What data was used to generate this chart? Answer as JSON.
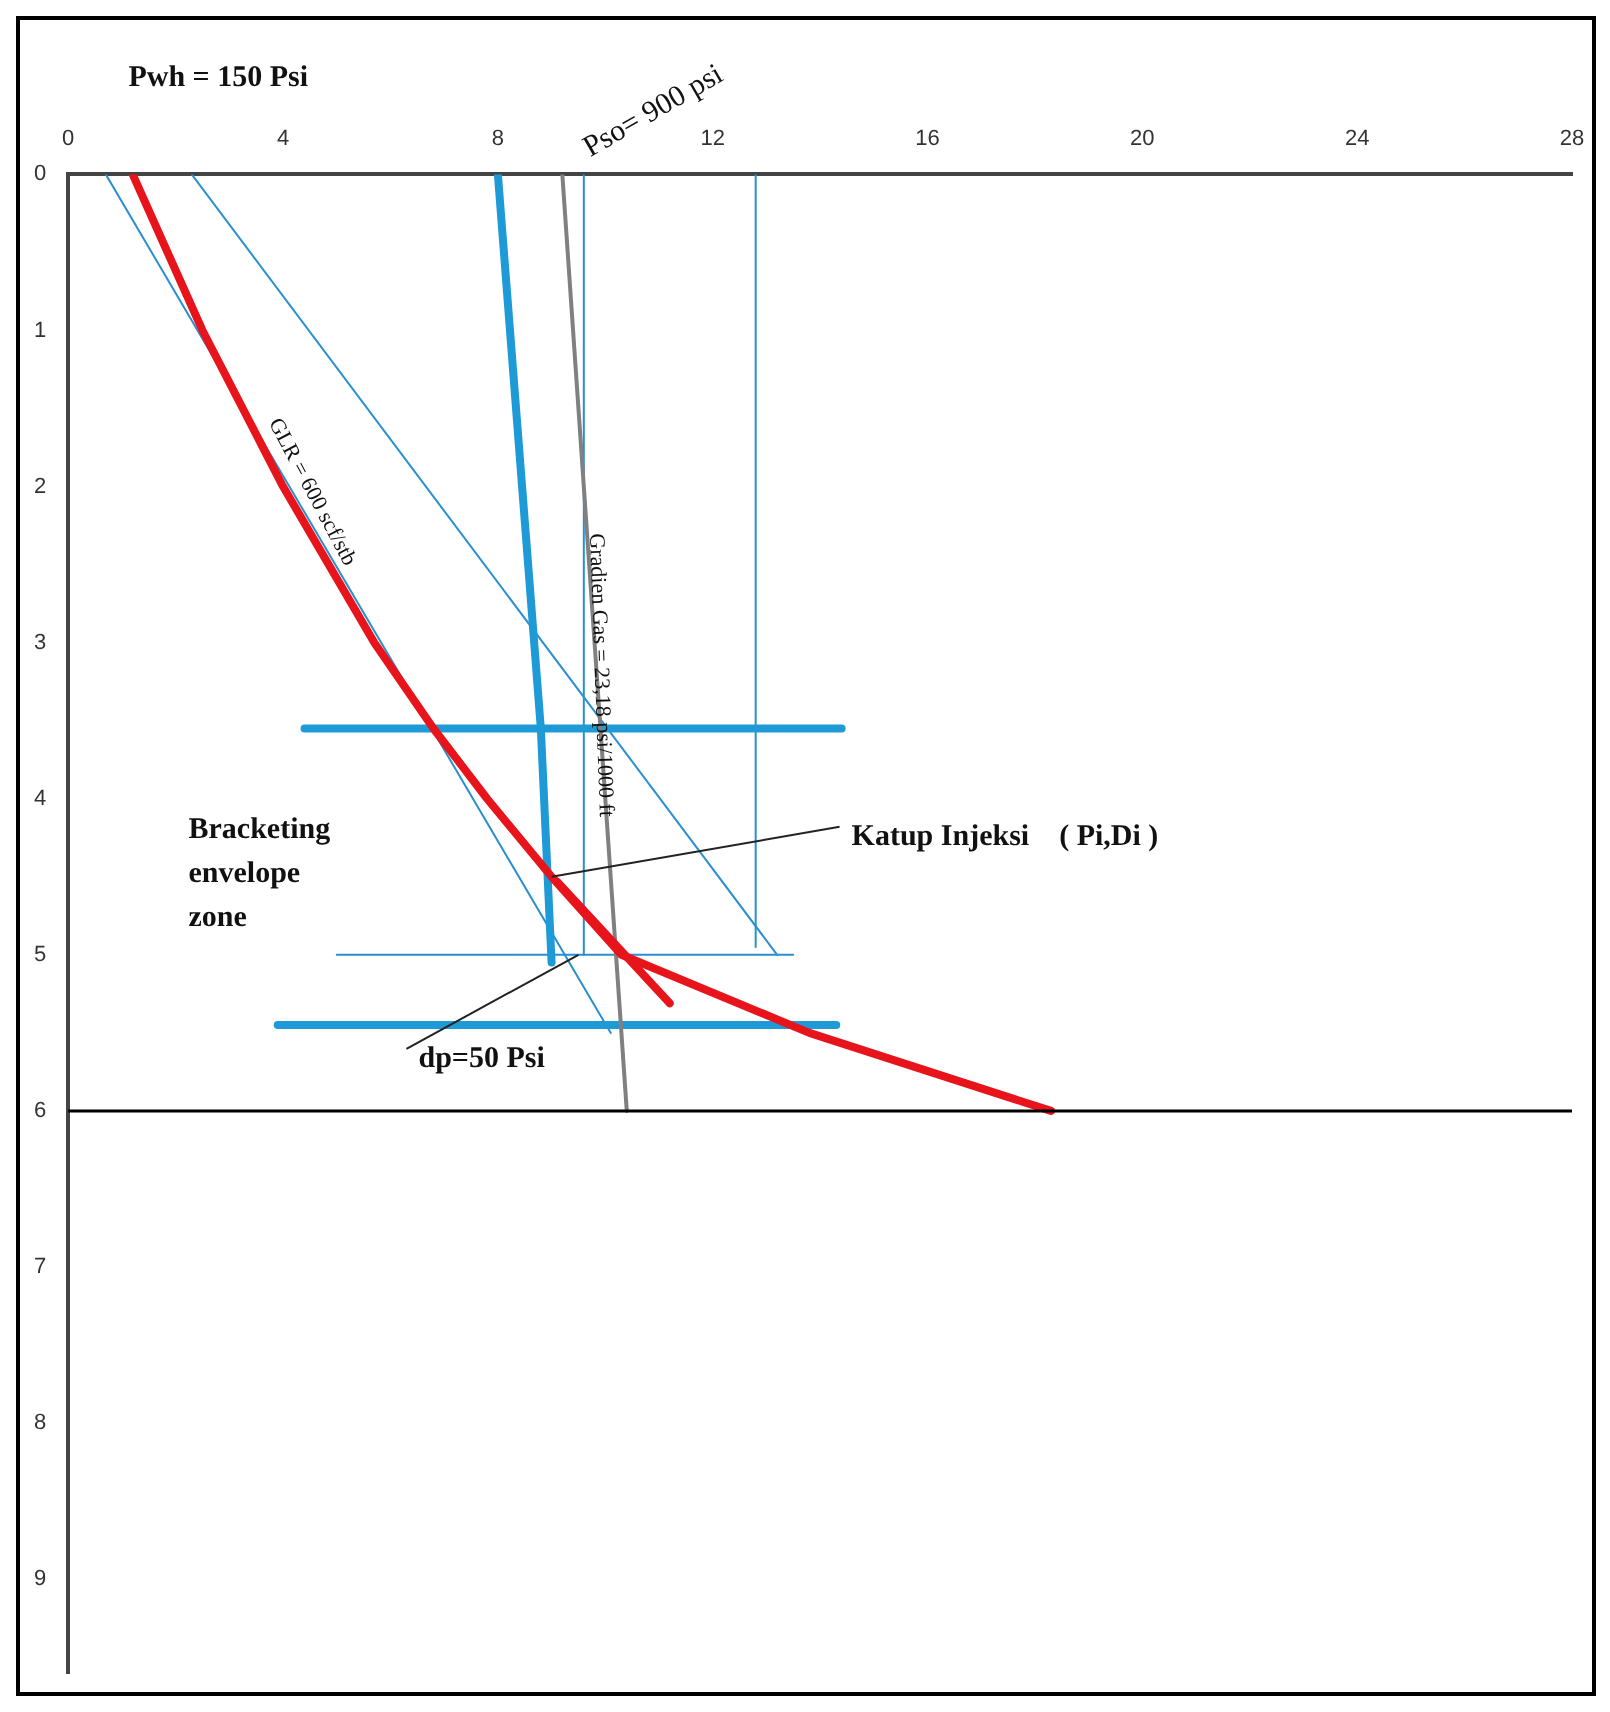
{
  "chart_data": {
    "type": "line",
    "marker": "none",
    "legend": false,
    "grid": false,
    "xlim": [
      0,
      28
    ],
    "xticks": [
      0,
      4,
      8,
      12,
      16,
      20,
      24,
      28
    ],
    "ylim": [
      9.6,
      0
    ],
    "yticks": [
      0,
      1,
      2,
      3,
      4,
      5,
      6,
      7,
      8,
      9
    ],
    "series": [
      {
        "color": "#e8141c",
        "x": [
          1.2,
          2.5,
          4.0,
          5.7,
          6.8,
          7.8,
          9.0,
          10.3,
          13.8,
          18.3
        ],
        "values": [
          0,
          1,
          2,
          3,
          3.55,
          4,
          4.5,
          5,
          5.5,
          6
        ]
      },
      {
        "color": "#e8141c",
        "x": [
          9.1,
          11.2
        ],
        "values": [
          4.53,
          5.31
        ]
      },
      {
        "color": "#808080",
        "x": [
          9.2,
          10.4
        ],
        "values": [
          0,
          6
        ]
      },
      {
        "color": "#1e9ad6",
        "x": [
          8.0,
          8.8,
          9.0
        ],
        "values": [
          0,
          3.55,
          5.05
        ]
      },
      {
        "color": "#1e9ad6",
        "x": [
          4.4,
          14.4
        ],
        "values": [
          3.55,
          3.55
        ]
      },
      {
        "color": "#1e9ad6",
        "x": [
          3.9,
          14.3
        ],
        "values": [
          5.45,
          5.45
        ]
      },
      {
        "color": "#2a8fd0",
        "x": [
          0.7,
          10.1
        ],
        "values": [
          0,
          5.5
        ]
      },
      {
        "color": "#2a8fd0",
        "x": [
          2.3,
          13.2
        ],
        "values": [
          0,
          5.0
        ]
      },
      {
        "color": "#2a8fd0",
        "x": [
          9.6,
          9.6
        ],
        "values": [
          0,
          5.0
        ]
      },
      {
        "color": "#2a8fd0",
        "x": [
          12.8,
          12.8
        ],
        "values": [
          0,
          4.95
        ]
      },
      {
        "color": "#2a8fd0",
        "x": [
          5.0,
          13.5
        ],
        "values": [
          5.0,
          5.0
        ]
      }
    ],
    "ref_lines": [
      {
        "axis": "y",
        "value": 6,
        "color": "#000000"
      }
    ],
    "annotations": [
      "Pwh = 150 Psi",
      {
        "text": "Pso= 900 psi",
        "x": 9.2,
        "y": 0
      },
      {
        "text": "GLR = 600 scf/stb",
        "x": 3.6,
        "y": 1.6
      },
      {
        "text": "Gradien Gas = 23,18 psi/1000 ft",
        "x": 9.6,
        "y": 2.3
      },
      "Bracketing envelope zone",
      {
        "text": "Katup Injeksi    ( Pi,Di )",
        "x": 9.0,
        "y": 4.5
      },
      {
        "text": "dp=50 Psi",
        "x": 9.5,
        "y": 5.0
      }
    ]
  }
}
